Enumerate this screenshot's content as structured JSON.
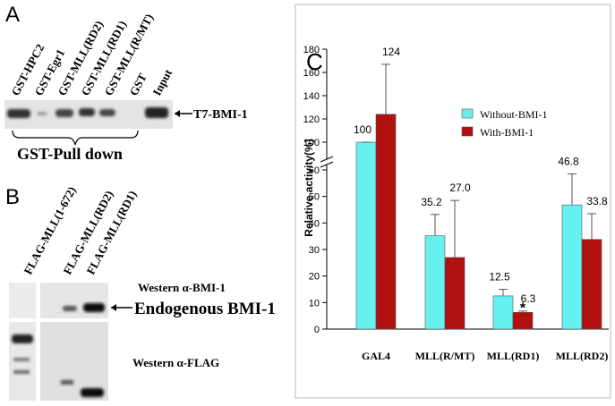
{
  "panel_a": {
    "label": "A",
    "lanes": [
      "GST-HPC2",
      "GST-Egr1",
      "GST-MLL(RD2)",
      "GST-MLL(RD1)",
      "GST-MLL(R/MT)",
      "GST",
      "Input"
    ],
    "band_label": "T7-BMI-1",
    "bracket_label": "GST-Pull down"
  },
  "panel_b": {
    "label": "B",
    "lanes": [
      "FLAG-MLL(1-672)",
      "FLAG-MLL(RD2)",
      "FLAG-MLL(RD1)"
    ],
    "western_1": "Western α-BMI-1",
    "band_label": "Endogenous BMI-1",
    "western_2": "Western α-FLAG"
  },
  "chart_data": {
    "type": "bar",
    "panel_label": "C",
    "y_label": "Relative activity(%)",
    "categories": [
      "GAL4",
      "MLL(R/MT)",
      "MLL(RD1)",
      "MLL(RD2)"
    ],
    "series": [
      {
        "name": "Without-BMI-1",
        "color": "#66f0f0",
        "values": [
          100,
          35.2,
          12.5,
          46.8
        ],
        "value_labels": [
          "100",
          "35.2",
          "12.5",
          "46.8"
        ],
        "errors": [
          0,
          8,
          2.5,
          11.7
        ]
      },
      {
        "name": "With-BMI-1",
        "color": "#b01010",
        "values": [
          124,
          27.0,
          6.3,
          33.8
        ],
        "value_labels": [
          "124",
          "27.0",
          "6.3",
          "33.8"
        ],
        "errors": [
          43,
          21.5,
          0.5,
          9.7
        ]
      }
    ],
    "annotation": "*",
    "ylim": [
      0,
      60
    ],
    "yticks": [
      0,
      10,
      20,
      30,
      40,
      50,
      60
    ],
    "ylim_upper": [
      90,
      180
    ],
    "yticks_upper": [
      100,
      120,
      140,
      160,
      180
    ]
  }
}
